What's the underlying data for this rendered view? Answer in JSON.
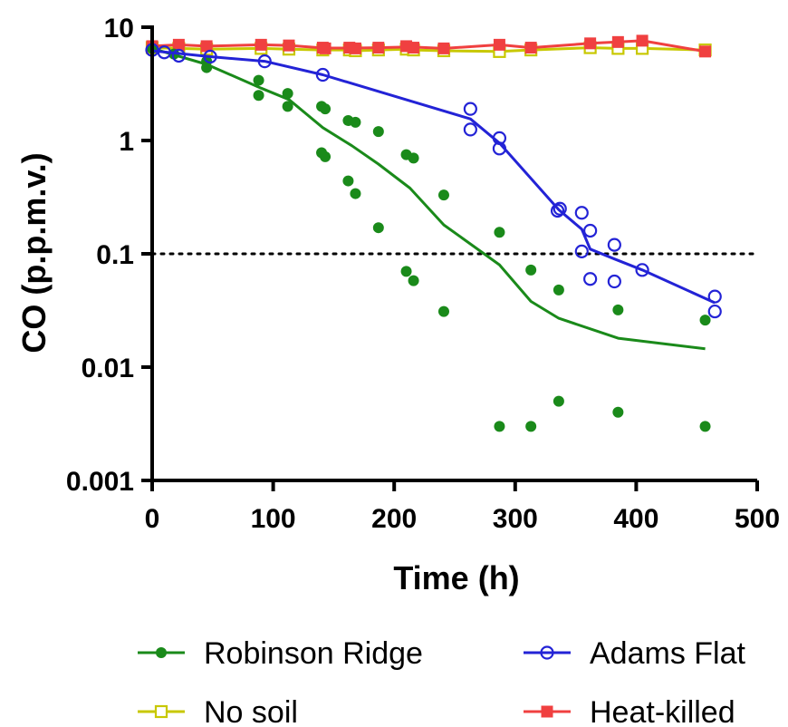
{
  "chart_data": {
    "type": "scatter",
    "xlabel": "Time (h)",
    "ylabel": "CO (p.p.m.v.)",
    "xlim": [
      0,
      500
    ],
    "ylim": [
      0.001,
      10
    ],
    "yscale": "log",
    "x_ticks": [
      0,
      100,
      200,
      300,
      400,
      500
    ],
    "x_tick_labels": [
      "0",
      "100",
      "200",
      "300",
      "400",
      "500"
    ],
    "y_ticks": [
      0.001,
      0.01,
      0.1,
      1,
      10
    ],
    "y_tick_labels": [
      "0.001",
      "0.01",
      "0.1",
      "1",
      "10"
    ],
    "reference_line": {
      "y": 0.1,
      "style": "dotted",
      "color": "#000000"
    },
    "legend_position": "bottom",
    "series": [
      {
        "name": "Robinson Ridge",
        "color": "#1a8a1a",
        "marker": "filled-circle",
        "points": [
          [
            0,
            6.5
          ],
          [
            18,
            5.8
          ],
          [
            45,
            4.4
          ],
          [
            45,
            5.0
          ],
          [
            88,
            3.4
          ],
          [
            88,
            2.5
          ],
          [
            112,
            2.6
          ],
          [
            112,
            2.0
          ],
          [
            140,
            2.0
          ],
          [
            143,
            1.9
          ],
          [
            140,
            0.78
          ],
          [
            143,
            0.72
          ],
          [
            162,
            1.5
          ],
          [
            168,
            1.45
          ],
          [
            162,
            0.44
          ],
          [
            168,
            0.34
          ],
          [
            187,
            1.2
          ],
          [
            187,
            0.17
          ],
          [
            210,
            0.75
          ],
          [
            216,
            0.7
          ],
          [
            210,
            0.07
          ],
          [
            216,
            0.058
          ],
          [
            241,
            0.33
          ],
          [
            241,
            0.031
          ],
          [
            287,
            0.155
          ],
          [
            287,
            0.003
          ],
          [
            313,
            0.072
          ],
          [
            313,
            0.003
          ],
          [
            336,
            0.048
          ],
          [
            336,
            0.005
          ],
          [
            385,
            0.032
          ],
          [
            385,
            0.004
          ],
          [
            457,
            0.026
          ],
          [
            457,
            0.003
          ]
        ],
        "line": [
          [
            0,
            6.5
          ],
          [
            45,
            4.7
          ],
          [
            90,
            2.9
          ],
          [
            113,
            2.3
          ],
          [
            141,
            1.3
          ],
          [
            165,
            0.9
          ],
          [
            187,
            0.62
          ],
          [
            213,
            0.38
          ],
          [
            241,
            0.18
          ],
          [
            287,
            0.08
          ],
          [
            313,
            0.038
          ],
          [
            336,
            0.027
          ],
          [
            385,
            0.018
          ],
          [
            457,
            0.0145
          ]
        ]
      },
      {
        "name": "Adams Flat",
        "color": "#2323d6",
        "marker": "open-circle",
        "points": [
          [
            0,
            6.3
          ],
          [
            10,
            6.0
          ],
          [
            22,
            5.6
          ],
          [
            48,
            5.5
          ],
          [
            93,
            5.0
          ],
          [
            141,
            3.8
          ],
          [
            263,
            1.9
          ],
          [
            263,
            1.25
          ],
          [
            287,
            1.05
          ],
          [
            287,
            0.85
          ],
          [
            335,
            0.24
          ],
          [
            337,
            0.25
          ],
          [
            355,
            0.23
          ],
          [
            355,
            0.105
          ],
          [
            362,
            0.16
          ],
          [
            362,
            0.06
          ],
          [
            382,
            0.12
          ],
          [
            382,
            0.057
          ],
          [
            405,
            0.072
          ],
          [
            465,
            0.042
          ],
          [
            465,
            0.031
          ]
        ],
        "line": [
          [
            0,
            6.2
          ],
          [
            48,
            5.5
          ],
          [
            93,
            5.0
          ],
          [
            141,
            3.8
          ],
          [
            263,
            1.55
          ],
          [
            287,
            0.95
          ],
          [
            336,
            0.245
          ],
          [
            355,
            0.165
          ],
          [
            362,
            0.11
          ],
          [
            382,
            0.09
          ],
          [
            405,
            0.072
          ],
          [
            465,
            0.037
          ]
        ]
      },
      {
        "name": "No soil",
        "color": "#c8c800",
        "marker": "open-square",
        "points": [
          [
            0,
            6.6
          ],
          [
            22,
            6.5
          ],
          [
            45,
            6.4
          ],
          [
            90,
            6.5
          ],
          [
            113,
            6.4
          ],
          [
            141,
            6.3
          ],
          [
            163,
            6.3
          ],
          [
            168,
            6.2
          ],
          [
            187,
            6.3
          ],
          [
            210,
            6.4
          ],
          [
            216,
            6.3
          ],
          [
            241,
            6.2
          ],
          [
            287,
            6.1
          ],
          [
            313,
            6.3
          ],
          [
            362,
            6.6
          ],
          [
            385,
            6.5
          ],
          [
            405,
            6.5
          ],
          [
            457,
            6.3
          ]
        ],
        "line": [
          [
            0,
            6.6
          ],
          [
            22,
            6.5
          ],
          [
            45,
            6.4
          ],
          [
            90,
            6.5
          ],
          [
            113,
            6.4
          ],
          [
            141,
            6.3
          ],
          [
            163,
            6.3
          ],
          [
            168,
            6.2
          ],
          [
            187,
            6.3
          ],
          [
            210,
            6.4
          ],
          [
            216,
            6.3
          ],
          [
            241,
            6.2
          ],
          [
            287,
            6.1
          ],
          [
            313,
            6.3
          ],
          [
            362,
            6.6
          ],
          [
            385,
            6.5
          ],
          [
            405,
            6.5
          ],
          [
            457,
            6.3
          ]
        ]
      },
      {
        "name": "Heat-killed",
        "color": "#f04040",
        "marker": "filled-square",
        "points": [
          [
            0,
            6.8
          ],
          [
            22,
            7.0
          ],
          [
            45,
            6.8
          ],
          [
            90,
            7.0
          ],
          [
            113,
            6.9
          ],
          [
            141,
            6.6
          ],
          [
            143,
            6.5
          ],
          [
            163,
            6.6
          ],
          [
            168,
            6.5
          ],
          [
            187,
            6.6
          ],
          [
            210,
            6.8
          ],
          [
            216,
            6.6
          ],
          [
            241,
            6.5
          ],
          [
            287,
            7.0
          ],
          [
            313,
            6.6
          ],
          [
            362,
            7.2
          ],
          [
            385,
            7.4
          ],
          [
            405,
            7.6
          ],
          [
            457,
            6.1
          ]
        ],
        "line": [
          [
            0,
            6.8
          ],
          [
            22,
            7.0
          ],
          [
            45,
            6.8
          ],
          [
            90,
            7.0
          ],
          [
            113,
            6.9
          ],
          [
            142,
            6.55
          ],
          [
            165,
            6.55
          ],
          [
            187,
            6.6
          ],
          [
            213,
            6.7
          ],
          [
            241,
            6.5
          ],
          [
            287,
            7.0
          ],
          [
            313,
            6.6
          ],
          [
            362,
            7.2
          ],
          [
            385,
            7.4
          ],
          [
            405,
            7.6
          ],
          [
            457,
            6.1
          ]
        ]
      }
    ]
  }
}
